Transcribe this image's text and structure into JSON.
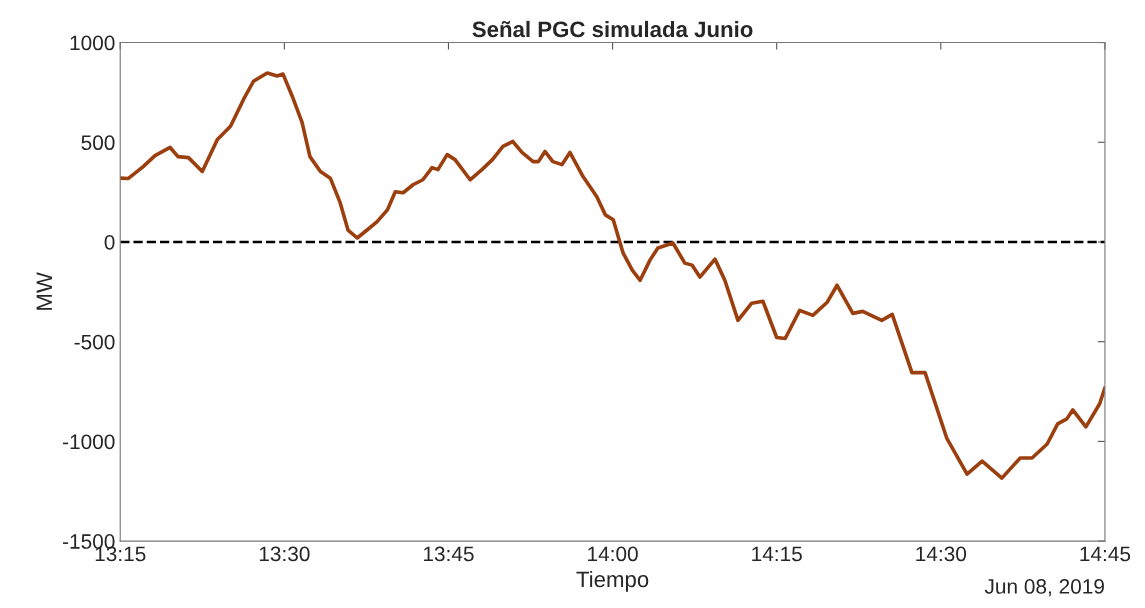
{
  "chart_data": {
    "type": "line",
    "title": "Señal PGC simulada Junio",
    "xlabel": "Tiempo",
    "ylabel": "MW",
    "annotations": [
      "Jun 08, 2019"
    ],
    "x": [
      13.25,
      13.262,
      13.285,
      13.303,
      13.326,
      13.338,
      13.354,
      13.375,
      13.398,
      13.418,
      13.438,
      13.453,
      13.474,
      13.489,
      13.498,
      13.512,
      13.527,
      13.539,
      13.555,
      13.57,
      13.585,
      13.597,
      13.611,
      13.626,
      13.641,
      13.657,
      13.669,
      13.681,
      13.696,
      13.711,
      13.725,
      13.734,
      13.748,
      13.76,
      13.783,
      13.801,
      13.817,
      13.833,
      13.848,
      13.862,
      13.879,
      13.887,
      13.897,
      13.909,
      13.923,
      13.935,
      13.955,
      13.976,
      13.989,
      14.001,
      14.016,
      14.03,
      14.042,
      14.057,
      14.069,
      14.092,
      14.11,
      14.121,
      14.133,
      14.156,
      14.171,
      14.191,
      14.212,
      14.229,
      14.25,
      14.263,
      14.285,
      14.305,
      14.327,
      14.342,
      14.366,
      14.381,
      14.41,
      14.426,
      14.456,
      14.476,
      14.509,
      14.54,
      14.563,
      14.593,
      14.621,
      14.639,
      14.662,
      14.678,
      14.692,
      14.701,
      14.721,
      14.742,
      14.75
    ],
    "series": [
      {
        "color": "#9c3f0f",
        "values": [
          320,
          318,
          378,
          433,
          474,
          428,
          423,
          353,
          514,
          580,
          716,
          806,
          847,
          832,
          842,
          731,
          600,
          428,
          353,
          320,
          197,
          60,
          20,
          60,
          101,
          161,
          252,
          247,
          287,
          312,
          373,
          363,
          438,
          413,
          312,
          363,
          413,
          479,
          504,
          449,
          403,
          403,
          454,
          403,
          388,
          449,
          328,
          227,
          136,
          111,
          -55,
          -141,
          -192,
          -91,
          -30,
          -5,
          -106,
          -116,
          -176,
          -86,
          -192,
          -393,
          -307,
          -297,
          -479,
          -484,
          -343,
          -368,
          -302,
          -217,
          -358,
          -348,
          -393,
          -363,
          -655,
          -655,
          -983,
          -1164,
          -1099,
          -1184,
          -1083,
          -1083,
          -1013,
          -912,
          -887,
          -842,
          -927,
          -811,
          -731
        ]
      }
    ],
    "xlim": [
      13.25,
      14.75
    ],
    "xticks": [
      {
        "value": 13.25,
        "label": "13:15"
      },
      {
        "value": 13.5,
        "label": "13:30"
      },
      {
        "value": 13.75,
        "label": "13:45"
      },
      {
        "value": 14.0,
        "label": "14:00"
      },
      {
        "value": 14.25,
        "label": "14:15"
      },
      {
        "value": 14.5,
        "label": "14:30"
      },
      {
        "value": 14.75,
        "label": "14:45"
      }
    ],
    "ylim": [
      -1500,
      1000
    ],
    "yticks": [
      -1500,
      -1000,
      -500,
      0,
      500,
      1000
    ],
    "ref_lines": [
      {
        "axis": "y",
        "value": 0,
        "color": "#000000",
        "line_style": "dashed"
      }
    ],
    "grid": false,
    "legend": false,
    "marker": "none",
    "line_style": "solid"
  }
}
